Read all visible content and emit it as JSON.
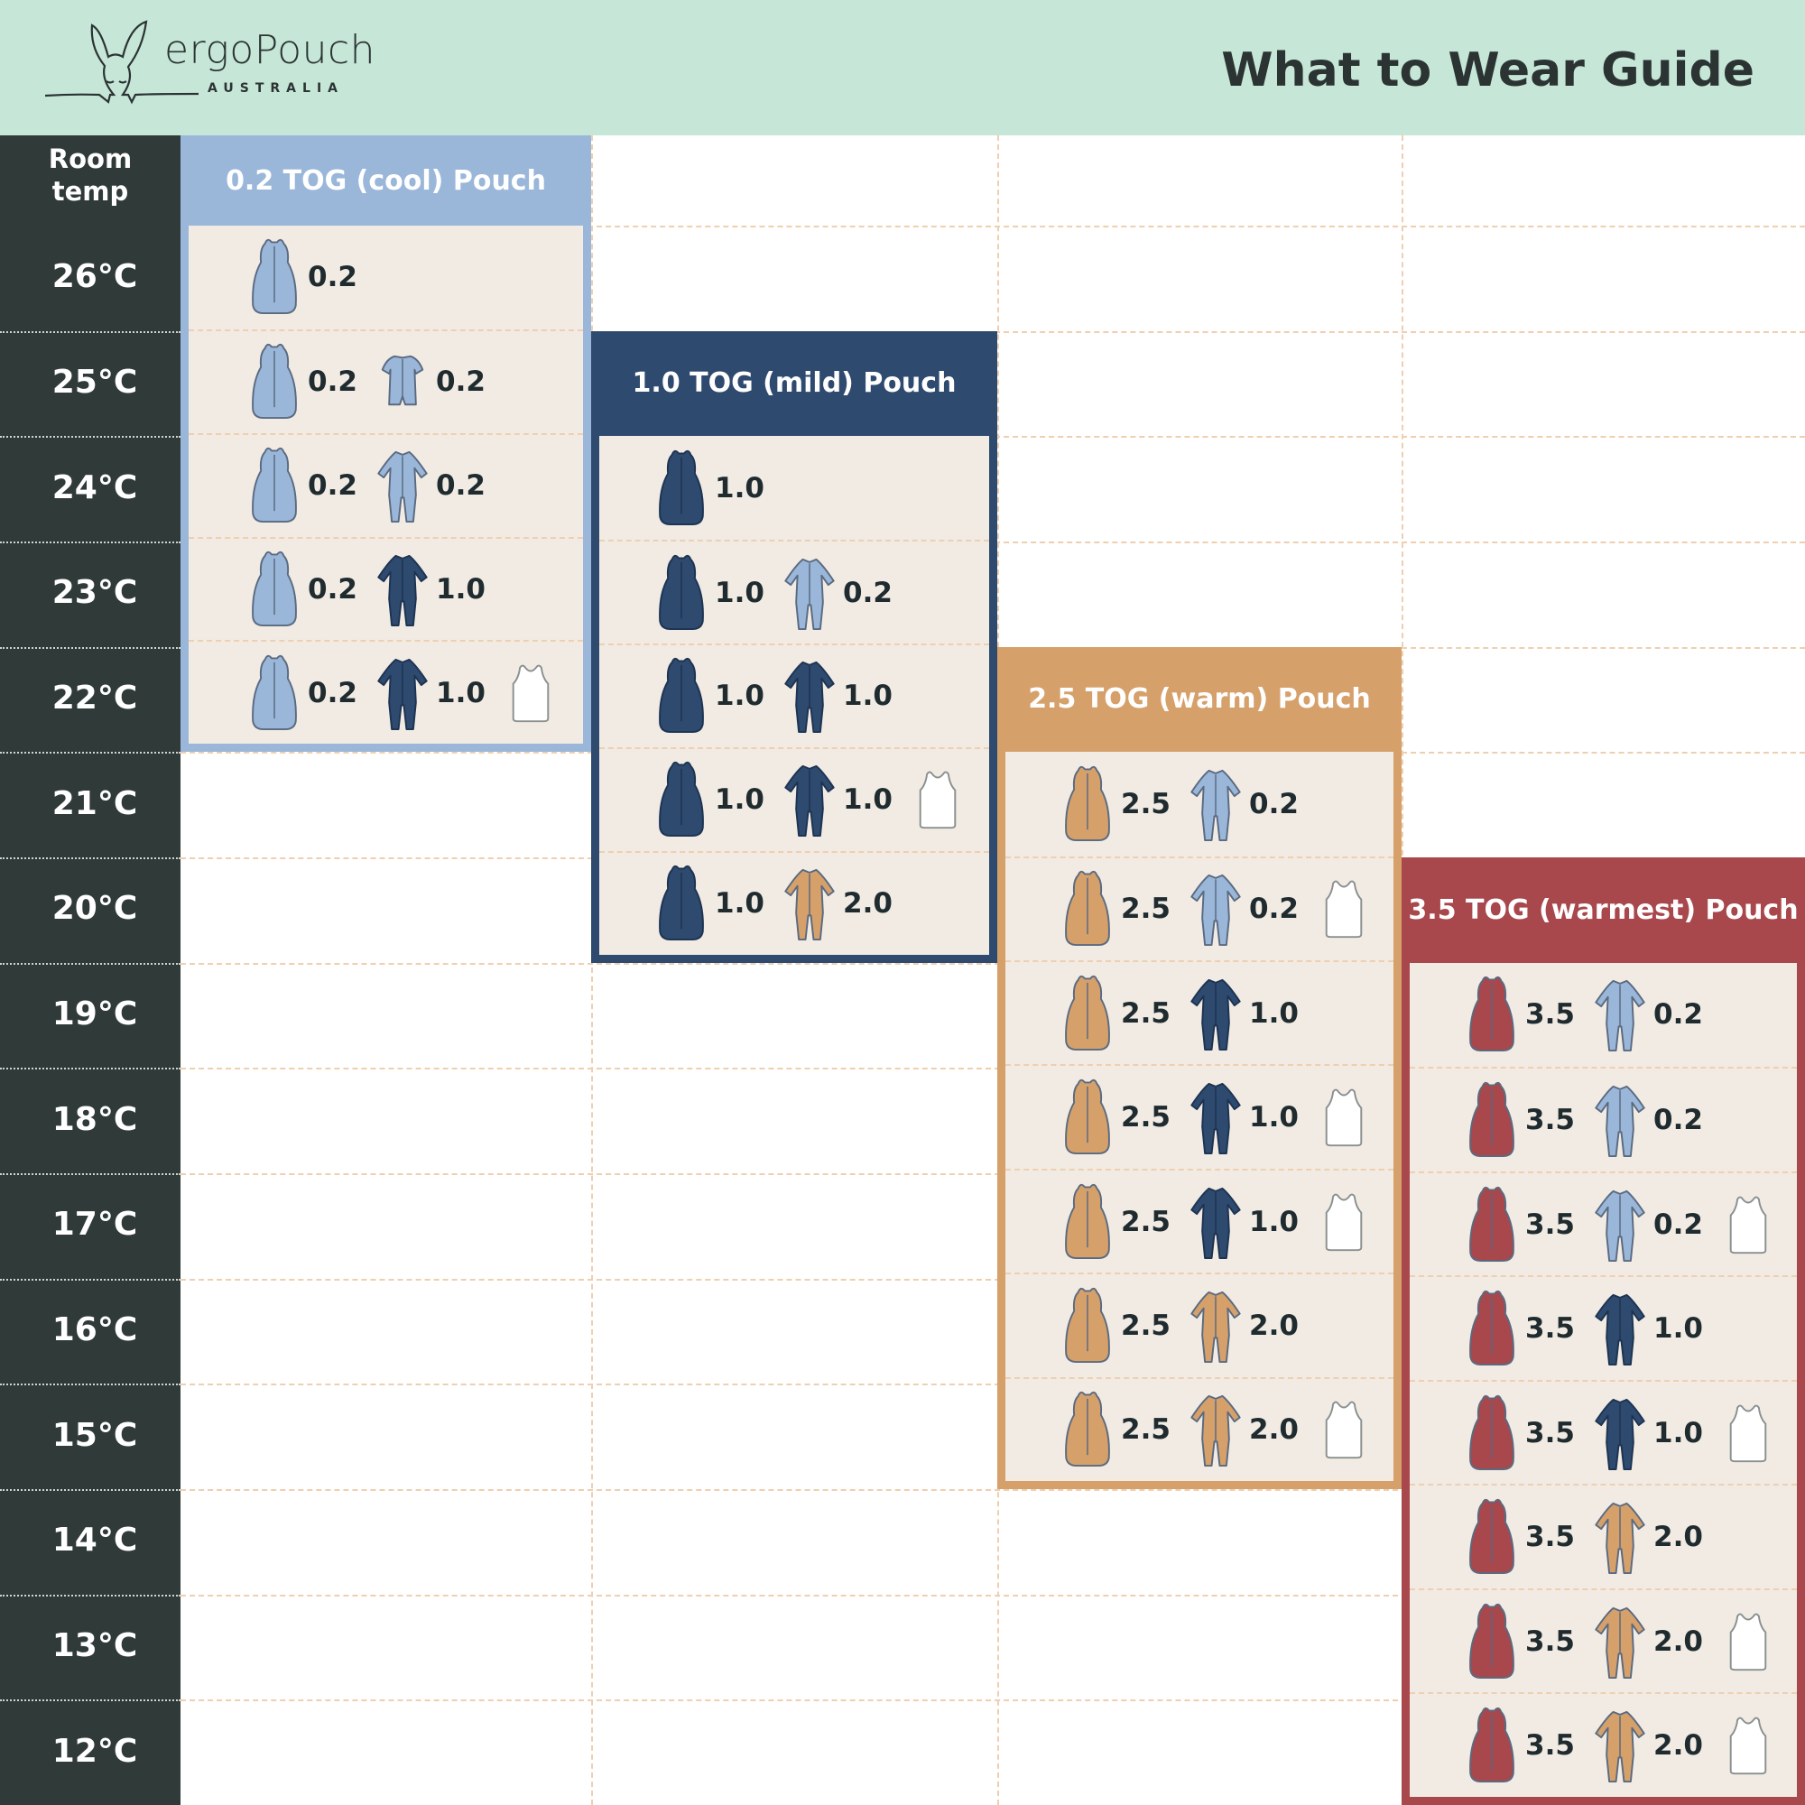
{
  "header": {
    "brand": "ergoPouch",
    "brand_sub": "AUSTRALIA",
    "title": "What to Wear Guide",
    "background": "#c6e6d8"
  },
  "left_column": {
    "heading_line1": "Room",
    "heading_line2": "temp",
    "temps": [
      "26°C",
      "25°C",
      "24°C",
      "23°C",
      "22°C",
      "21°C",
      "20°C",
      "19°C",
      "18°C",
      "17°C",
      "16°C",
      "15°C",
      "14°C",
      "13°C",
      "12°C"
    ]
  },
  "palette": {
    "lightblue": "#9ab7da",
    "navy": "#2e4a6e",
    "tan": "#d6a06a",
    "red": "#a8474c",
    "white": "#ffffff"
  },
  "sections": [
    {
      "title": "0.2 TOG (cool) Pouch",
      "color": "#9ab7da",
      "temps": [
        "26°C",
        "25°C",
        "24°C",
        "23°C",
        "22°C"
      ],
      "rows": [
        [
          {
            "type": "pouch",
            "color": "lightblue",
            "tog": "0.2"
          }
        ],
        [
          {
            "type": "pouch",
            "color": "lightblue",
            "tog": "0.2"
          },
          {
            "type": "shortsuit",
            "color": "lightblue",
            "tog": "0.2"
          }
        ],
        [
          {
            "type": "pouch",
            "color": "lightblue",
            "tog": "0.2"
          },
          {
            "type": "suit",
            "color": "lightblue",
            "tog": "0.2"
          }
        ],
        [
          {
            "type": "pouch",
            "color": "lightblue",
            "tog": "0.2"
          },
          {
            "type": "suit",
            "color": "navy",
            "tog": "1.0"
          }
        ],
        [
          {
            "type": "pouch",
            "color": "lightblue",
            "tog": "0.2"
          },
          {
            "type": "suit",
            "color": "navy",
            "tog": "1.0"
          },
          {
            "type": "singlet",
            "color": "white",
            "tog": ""
          }
        ]
      ]
    },
    {
      "title": "1.0 TOG (mild) Pouch",
      "color": "#2e4a6e",
      "temps": [
        "24°C",
        "23°C",
        "22°C",
        "21°C",
        "20°C"
      ],
      "rows": [
        [
          {
            "type": "pouch",
            "color": "navy",
            "tog": "1.0"
          }
        ],
        [
          {
            "type": "pouch",
            "color": "navy",
            "tog": "1.0"
          },
          {
            "type": "suit",
            "color": "lightblue",
            "tog": "0.2"
          }
        ],
        [
          {
            "type": "pouch",
            "color": "navy",
            "tog": "1.0"
          },
          {
            "type": "suit",
            "color": "navy",
            "tog": "1.0"
          }
        ],
        [
          {
            "type": "pouch",
            "color": "navy",
            "tog": "1.0"
          },
          {
            "type": "suit",
            "color": "navy",
            "tog": "1.0"
          },
          {
            "type": "singlet",
            "color": "white",
            "tog": ""
          }
        ],
        [
          {
            "type": "pouch",
            "color": "navy",
            "tog": "1.0"
          },
          {
            "type": "suit",
            "color": "tan",
            "tog": "2.0"
          }
        ]
      ]
    },
    {
      "title": "2.5 TOG (warm) Pouch",
      "color": "#d6a06a",
      "temps": [
        "21°C",
        "20°C",
        "19°C",
        "18°C",
        "17°C",
        "16°C",
        "15°C"
      ],
      "rows": [
        [
          {
            "type": "pouch",
            "color": "tan",
            "tog": "2.5"
          },
          {
            "type": "suit",
            "color": "lightblue",
            "tog": "0.2"
          }
        ],
        [
          {
            "type": "pouch",
            "color": "tan",
            "tog": "2.5"
          },
          {
            "type": "suit",
            "color": "lightblue",
            "tog": "0.2"
          },
          {
            "type": "singlet",
            "color": "white",
            "tog": ""
          }
        ],
        [
          {
            "type": "pouch",
            "color": "tan",
            "tog": "2.5"
          },
          {
            "type": "suit",
            "color": "navy",
            "tog": "1.0"
          }
        ],
        [
          {
            "type": "pouch",
            "color": "tan",
            "tog": "2.5"
          },
          {
            "type": "suit",
            "color": "navy",
            "tog": "1.0"
          },
          {
            "type": "singlet",
            "color": "white",
            "tog": ""
          }
        ],
        [
          {
            "type": "pouch",
            "color": "tan",
            "tog": "2.5"
          },
          {
            "type": "suit",
            "color": "navy",
            "tog": "1.0"
          },
          {
            "type": "singlet",
            "color": "white",
            "tog": ""
          }
        ],
        [
          {
            "type": "pouch",
            "color": "tan",
            "tog": "2.5"
          },
          {
            "type": "suit",
            "color": "tan",
            "tog": "2.0"
          }
        ],
        [
          {
            "type": "pouch",
            "color": "tan",
            "tog": "2.5"
          },
          {
            "type": "suit",
            "color": "tan",
            "tog": "2.0"
          },
          {
            "type": "singlet",
            "color": "white",
            "tog": ""
          }
        ]
      ]
    },
    {
      "title": "3.5 TOG (warmest) Pouch",
      "color": "#a8474c",
      "temps": [
        "19°C",
        "18°C",
        "17°C",
        "16°C",
        "15°C",
        "14°C",
        "13°C",
        "12°C"
      ],
      "rows": [
        [
          {
            "type": "pouch",
            "color": "red",
            "tog": "3.5"
          },
          {
            "type": "suit",
            "color": "lightblue",
            "tog": "0.2"
          }
        ],
        [
          {
            "type": "pouch",
            "color": "red",
            "tog": "3.5"
          },
          {
            "type": "suit",
            "color": "lightblue",
            "tog": "0.2"
          }
        ],
        [
          {
            "type": "pouch",
            "color": "red",
            "tog": "3.5"
          },
          {
            "type": "suit",
            "color": "lightblue",
            "tog": "0.2"
          },
          {
            "type": "singlet",
            "color": "white",
            "tog": ""
          }
        ],
        [
          {
            "type": "pouch",
            "color": "red",
            "tog": "3.5"
          },
          {
            "type": "suit",
            "color": "navy",
            "tog": "1.0"
          }
        ],
        [
          {
            "type": "pouch",
            "color": "red",
            "tog": "3.5"
          },
          {
            "type": "suit",
            "color": "navy",
            "tog": "1.0"
          },
          {
            "type": "singlet",
            "color": "white",
            "tog": ""
          }
        ],
        [
          {
            "type": "pouch",
            "color": "red",
            "tog": "3.5"
          },
          {
            "type": "suit",
            "color": "tan",
            "tog": "2.0"
          }
        ],
        [
          {
            "type": "pouch",
            "color": "red",
            "tog": "3.5"
          },
          {
            "type": "suit",
            "color": "tan",
            "tog": "2.0"
          },
          {
            "type": "singlet",
            "color": "white",
            "tog": ""
          }
        ],
        [
          {
            "type": "pouch",
            "color": "red",
            "tog": "3.5"
          },
          {
            "type": "suit",
            "color": "tan",
            "tog": "2.0"
          },
          {
            "type": "singlet",
            "color": "white",
            "tog": ""
          }
        ]
      ]
    }
  ]
}
